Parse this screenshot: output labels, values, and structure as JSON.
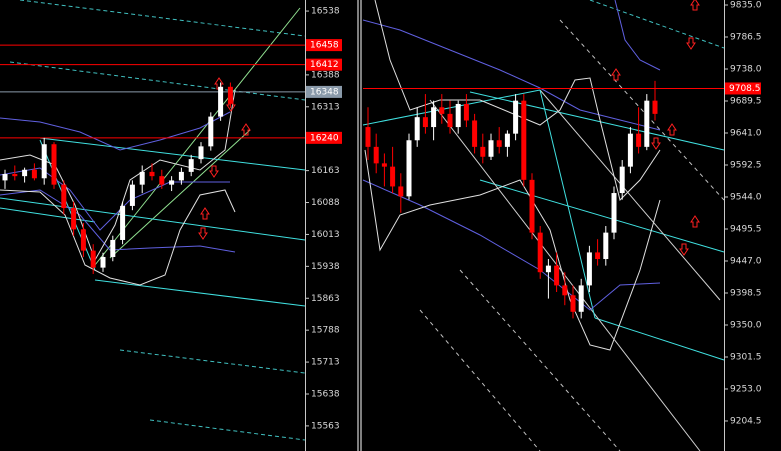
{
  "chart_data": [
    {
      "type": "candlestick",
      "categories": [
        null,
        null,
        null,
        null,
        null,
        null,
        null,
        null,
        null,
        null,
        null,
        null,
        null,
        null,
        null,
        null,
        null,
        null,
        null,
        null,
        null,
        null,
        null,
        null
      ],
      "open": [
        16140,
        16155,
        16150,
        16165,
        16145,
        16225,
        16130,
        16075,
        16025,
        15975,
        15935,
        15960,
        16000,
        16080,
        16130,
        16160,
        16150,
        16130,
        16140,
        16160,
        16190,
        16220,
        16290,
        16360
      ],
      "high": [
        16165,
        16175,
        16170,
        16180,
        16240,
        16230,
        16140,
        16090,
        16040,
        15990,
        15970,
        16010,
        16090,
        16140,
        16175,
        16180,
        16165,
        16150,
        16170,
        16200,
        16230,
        16300,
        16370,
        16370
      ],
      "low": [
        16120,
        16140,
        16135,
        16140,
        16130,
        16120,
        16060,
        16010,
        15960,
        15920,
        15925,
        15950,
        15990,
        16070,
        16110,
        16140,
        16120,
        16115,
        16130,
        16150,
        16180,
        16210,
        16280,
        16310
      ],
      "close": [
        16155,
        16150,
        16165,
        16145,
        16225,
        16130,
        16075,
        16025,
        15975,
        15935,
        15960,
        16000,
        16080,
        16130,
        16160,
        16150,
        16130,
        16140,
        16160,
        16190,
        16220,
        16290,
        16360,
        16320
      ],
      "up_color": "#ffffff",
      "down_color": "#ff0000",
      "ylim": [
        15504,
        16564
      ],
      "yticks": [
        16538,
        16388,
        16313,
        16163,
        16088,
        16013,
        15938,
        15863,
        15788,
        15713,
        15638,
        15563
      ],
      "levels": [
        {
          "value": 16458,
          "color": "#ff0000"
        },
        {
          "value": 16412,
          "color": "#ff0000"
        },
        {
          "value": 16348,
          "color": "#8a9aaa"
        },
        {
          "value": 16240,
          "color": "#ff0000"
        }
      ]
    },
    {
      "type": "candlestick",
      "categories": [
        null,
        null,
        null,
        null,
        null,
        null,
        null,
        null,
        null,
        null,
        null,
        null,
        null,
        null,
        null,
        null,
        null,
        null,
        null,
        null,
        null,
        null,
        null,
        null,
        null,
        null,
        null,
        null,
        null,
        null,
        null,
        null,
        null,
        null,
        null,
        null
      ],
      "open": [
        9650,
        9620,
        9595,
        9590,
        9560,
        9545,
        9630,
        9665,
        9650,
        9680,
        9670,
        9650,
        9685,
        9660,
        9620,
        9605,
        9630,
        9620,
        9640,
        9690,
        9570,
        9490,
        9430,
        9440,
        9410,
        9395,
        9370,
        9410,
        9460,
        9450,
        9490,
        9550,
        9590,
        9640,
        9620,
        9690
      ],
      "high": [
        9680,
        9640,
        9610,
        9620,
        9580,
        9640,
        9680,
        9700,
        9690,
        9700,
        9690,
        9690,
        9700,
        9670,
        9640,
        9640,
        9650,
        9645,
        9700,
        9700,
        9580,
        9500,
        9450,
        9460,
        9430,
        9410,
        9420,
        9470,
        9480,
        9500,
        9560,
        9600,
        9650,
        9680,
        9700,
        9720
      ],
      "low": [
        9600,
        9580,
        9560,
        9550,
        9520,
        9540,
        9620,
        9640,
        9630,
        9655,
        9640,
        9640,
        9650,
        9610,
        9595,
        9600,
        9610,
        9605,
        9630,
        9560,
        9480,
        9420,
        9390,
        9400,
        9380,
        9360,
        9360,
        9400,
        9440,
        9440,
        9480,
        9540,
        9580,
        9610,
        9615,
        9660
      ],
      "close": [
        9620,
        9595,
        9590,
        9560,
        9545,
        9630,
        9665,
        9650,
        9680,
        9670,
        9650,
        9685,
        9660,
        9620,
        9605,
        9630,
        9620,
        9640,
        9690,
        9570,
        9490,
        9430,
        9440,
        9410,
        9395,
        9370,
        9410,
        9460,
        9450,
        9490,
        9550,
        9590,
        9640,
        9620,
        9690,
        9670
      ],
      "up_color": "#ffffff",
      "down_color": "#ff0000",
      "ylim": [
        9159,
        9842.6
      ],
      "yticks": [
        {
          "value": 9835,
          "label": "9835.0"
        },
        9786.5,
        {
          "value": 9738,
          "label": "9738.0"
        },
        9689.5,
        {
          "value": 9641,
          "label": "9641.0"
        },
        9592.5,
        {
          "value": 9544,
          "label": "9544.0"
        },
        9495.5,
        {
          "value": 9447,
          "label": "9447.0"
        },
        9398.5,
        {
          "value": 9350,
          "label": "9350.0"
        },
        9301.5,
        {
          "value": 9253,
          "label": "9253.0"
        },
        9204.5
      ],
      "levels": [
        {
          "value": 9708.5,
          "color": "#ff0000"
        }
      ]
    }
  ]
}
